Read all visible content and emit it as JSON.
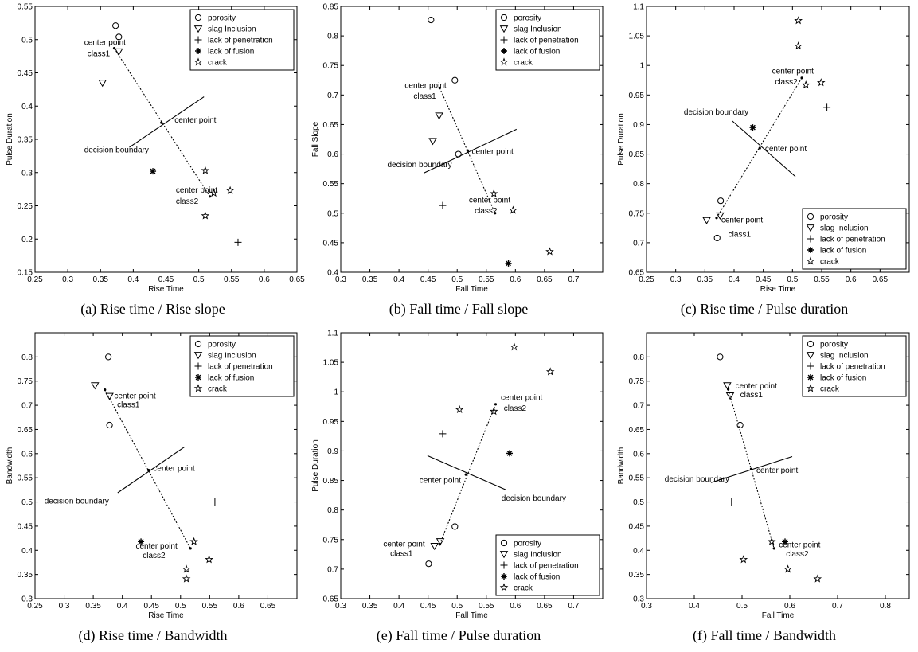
{
  "legend_labels": [
    "porosity",
    "slag Inclusion",
    "lack of penetration",
    "lack of fusion",
    "crack"
  ],
  "marker_shapes": [
    "circle",
    "triangle-down",
    "plus",
    "asterisk",
    "pentagram"
  ],
  "chart_data": [
    {
      "type": "scatter",
      "caption": "(a) Rise time / Rise slope",
      "xlabel": "Rise Time",
      "ylabel": "Pulse Duration",
      "xlim": [
        0.25,
        0.65
      ],
      "ylim": [
        0.15,
        0.55
      ],
      "xticks": [
        0.25,
        0.3,
        0.35,
        0.4,
        0.45,
        0.5,
        0.55,
        0.6,
        0.65
      ],
      "yticks": [
        0.15,
        0.2,
        0.25,
        0.3,
        0.35,
        0.4,
        0.45,
        0.5,
        0.55
      ],
      "legend": "top-right",
      "series": [
        {
          "name": "porosity",
          "points": [
            [
              0.373,
              0.521
            ],
            [
              0.378,
              0.504
            ]
          ]
        },
        {
          "name": "slag Inclusion",
          "points": [
            [
              0.378,
              0.482
            ],
            [
              0.353,
              0.435
            ]
          ]
        },
        {
          "name": "lack of penetration",
          "points": [
            [
              0.56,
              0.195
            ]
          ]
        },
        {
          "name": "lack of fusion",
          "points": [
            [
              0.43,
              0.302
            ]
          ]
        },
        {
          "name": "crack",
          "points": [
            [
              0.51,
              0.303
            ],
            [
              0.51,
              0.235
            ],
            [
              0.523,
              0.269
            ],
            [
              0.548,
              0.273
            ]
          ]
        }
      ],
      "center_class1": [
        0.371,
        0.487
      ],
      "center_class2": [
        0.517,
        0.264
      ],
      "center_point": [
        0.443,
        0.375
      ],
      "boundary": [
        [
          0.394,
          0.338
        ],
        [
          0.508,
          0.414
        ]
      ],
      "annotations": [
        {
          "text": "center point",
          "x": 0.325,
          "y": 0.492
        },
        {
          "text": "class1",
          "x": 0.33,
          "y": 0.475
        },
        {
          "text": "center point",
          "x": 0.463,
          "y": 0.375
        },
        {
          "text": "decision boundary",
          "x": 0.325,
          "y": 0.33
        },
        {
          "text": "center point",
          "x": 0.465,
          "y": 0.27
        },
        {
          "text": "class2",
          "x": 0.465,
          "y": 0.253
        }
      ]
    },
    {
      "type": "scatter",
      "caption": "(b) Fall time / Fall slope",
      "xlabel": "Fall Time",
      "ylabel": "Fall Slope",
      "xlim": [
        0.3,
        0.75
      ],
      "ylim": [
        0.4,
        0.85
      ],
      "xticks": [
        0.3,
        0.35,
        0.4,
        0.45,
        0.5,
        0.55,
        0.6,
        0.65,
        0.7
      ],
      "yticks": [
        0.4,
        0.45,
        0.5,
        0.55,
        0.6,
        0.65,
        0.7,
        0.75,
        0.8,
        0.85
      ],
      "legend": "top-right",
      "series": [
        {
          "name": "porosity",
          "points": [
            [
              0.455,
              0.827
            ],
            [
              0.496,
              0.725
            ],
            [
              0.502,
              0.6
            ]
          ]
        },
        {
          "name": "slag Inclusion",
          "points": [
            [
              0.469,
              0.665
            ],
            [
              0.458,
              0.622
            ]
          ]
        },
        {
          "name": "lack of penetration",
          "points": [
            [
              0.475,
              0.513
            ]
          ]
        },
        {
          "name": "lack of fusion",
          "points": [
            [
              0.588,
              0.415
            ]
          ]
        },
        {
          "name": "crack",
          "points": [
            [
              0.563,
              0.533
            ],
            [
              0.596,
              0.505
            ],
            [
              0.659,
              0.435
            ]
          ]
        }
      ],
      "center_class1": [
        0.47,
        0.712
      ],
      "center_class2": [
        0.565,
        0.5
      ],
      "center_point": [
        0.518,
        0.606
      ],
      "boundary": [
        [
          0.443,
          0.568
        ],
        [
          0.602,
          0.642
        ]
      ],
      "annotations": [
        {
          "text": "center point",
          "x": 0.41,
          "y": 0.712
        },
        {
          "text": "class1",
          "x": 0.425,
          "y": 0.694
        },
        {
          "text": "center point",
          "x": 0.525,
          "y": 0.6
        },
        {
          "text": "decision boundary",
          "x": 0.38,
          "y": 0.578
        },
        {
          "text": "center point",
          "x": 0.52,
          "y": 0.518
        },
        {
          "text": "class2",
          "x": 0.53,
          "y": 0.5
        }
      ]
    },
    {
      "type": "scatter",
      "caption": "(c) Rise time / Pulse duration",
      "xlabel": "Rise Time",
      "ylabel": "Pulse Duration",
      "xlim": [
        0.25,
        0.7
      ],
      "ylim": [
        0.65,
        1.1
      ],
      "xticks": [
        0.25,
        0.3,
        0.35,
        0.4,
        0.45,
        0.5,
        0.55,
        0.6,
        0.65
      ],
      "yticks": [
        0.65,
        0.7,
        0.75,
        0.8,
        0.85,
        0.9,
        0.95,
        1,
        1.05,
        1.1
      ],
      "legend": "bottom-right",
      "series": [
        {
          "name": "porosity",
          "points": [
            [
              0.377,
              0.771
            ],
            [
              0.371,
              0.708
            ]
          ]
        },
        {
          "name": "slag Inclusion",
          "points": [
            [
              0.376,
              0.746
            ],
            [
              0.353,
              0.738
            ]
          ]
        },
        {
          "name": "lack of penetration",
          "points": [
            [
              0.559,
              0.929
            ]
          ]
        },
        {
          "name": "lack of fusion",
          "points": [
            [
              0.432,
              0.895
            ]
          ]
        },
        {
          "name": "crack",
          "points": [
            [
              0.51,
              1.076
            ],
            [
              0.51,
              1.033
            ],
            [
              0.523,
              0.967
            ],
            [
              0.549,
              0.971
            ]
          ]
        }
      ],
      "center_class1": [
        0.37,
        0.742
      ],
      "center_class2": [
        0.516,
        0.979
      ],
      "center_point": [
        0.444,
        0.86
      ],
      "boundary": [
        [
          0.397,
          0.906
        ],
        [
          0.505,
          0.812
        ]
      ],
      "annotations": [
        {
          "text": "center point",
          "x": 0.465,
          "y": 0.986
        },
        {
          "text": "class2",
          "x": 0.47,
          "y": 0.968
        },
        {
          "text": "decision boundary",
          "x": 0.314,
          "y": 0.917
        },
        {
          "text": "center point",
          "x": 0.453,
          "y": 0.855
        },
        {
          "text": "center point",
          "x": 0.378,
          "y": 0.734
        },
        {
          "text": "class1",
          "x": 0.39,
          "y": 0.71
        }
      ]
    },
    {
      "type": "scatter",
      "caption": "(d) Rise time / Bandwidth",
      "xlabel": "Rise Time",
      "ylabel": "Bandwidth",
      "xlim": [
        0.25,
        0.7
      ],
      "ylim": [
        0.3,
        0.85
      ],
      "xticks": [
        0.25,
        0.3,
        0.35,
        0.4,
        0.45,
        0.5,
        0.55,
        0.6,
        0.65
      ],
      "yticks": [
        0.3,
        0.35,
        0.4,
        0.45,
        0.5,
        0.55,
        0.6,
        0.65,
        0.7,
        0.75,
        0.8
      ],
      "legend": "top-right",
      "series": [
        {
          "name": "porosity",
          "points": [
            [
              0.376,
              0.8
            ],
            [
              0.378,
              0.659
            ]
          ]
        },
        {
          "name": "slag Inclusion",
          "points": [
            [
              0.353,
              0.741
            ],
            [
              0.378,
              0.719
            ]
          ]
        },
        {
          "name": "lack of penetration",
          "points": [
            [
              0.559,
              0.5
            ]
          ]
        },
        {
          "name": "lack of fusion",
          "points": [
            [
              0.432,
              0.418
            ]
          ]
        },
        {
          "name": "crack",
          "points": [
            [
              0.523,
              0.418
            ],
            [
              0.549,
              0.381
            ],
            [
              0.51,
              0.361
            ],
            [
              0.51,
              0.341
            ]
          ]
        }
      ],
      "center_class1": [
        0.37,
        0.732
      ],
      "center_class2": [
        0.517,
        0.404
      ],
      "center_point": [
        0.445,
        0.566
      ],
      "boundary": [
        [
          0.392,
          0.519
        ],
        [
          0.507,
          0.614
        ]
      ],
      "annotations": [
        {
          "text": "center point",
          "x": 0.386,
          "y": 0.714
        },
        {
          "text": "class1",
          "x": 0.391,
          "y": 0.696
        },
        {
          "text": "center point",
          "x": 0.453,
          "y": 0.564
        },
        {
          "text": "decision boundary",
          "x": 0.266,
          "y": 0.497
        },
        {
          "text": "center point",
          "x": 0.423,
          "y": 0.404
        },
        {
          "text": "class2",
          "x": 0.435,
          "y": 0.384
        }
      ]
    },
    {
      "type": "scatter",
      "caption": "(e) Fall time / Pulse duration",
      "xlabel": "Fall Time",
      "ylabel": "Pulse Duration",
      "xlim": [
        0.3,
        0.75
      ],
      "ylim": [
        0.65,
        1.1
      ],
      "xticks": [
        0.3,
        0.35,
        0.4,
        0.45,
        0.5,
        0.55,
        0.6,
        0.65,
        0.7
      ],
      "yticks": [
        0.65,
        0.7,
        0.75,
        0.8,
        0.85,
        0.9,
        0.95,
        1,
        1.05,
        1.1
      ],
      "legend": "bottom-right",
      "series": [
        {
          "name": "porosity",
          "points": [
            [
              0.496,
              0.772
            ],
            [
              0.451,
              0.709
            ]
          ]
        },
        {
          "name": "slag Inclusion",
          "points": [
            [
              0.471,
              0.747
            ],
            [
              0.461,
              0.739
            ]
          ]
        },
        {
          "name": "lack of penetration",
          "points": [
            [
              0.475,
              0.929
            ]
          ]
        },
        {
          "name": "lack of fusion",
          "points": [
            [
              0.59,
              0.896
            ]
          ]
        },
        {
          "name": "crack",
          "points": [
            [
              0.598,
              1.076
            ],
            [
              0.66,
              1.034
            ],
            [
              0.504,
              0.97
            ],
            [
              0.563,
              0.967
            ]
          ]
        }
      ],
      "center_class1": [
        0.47,
        0.742
      ],
      "center_class2": [
        0.566,
        0.979
      ],
      "center_point": [
        0.515,
        0.86
      ],
      "boundary": [
        [
          0.449,
          0.892
        ],
        [
          0.584,
          0.834
        ]
      ],
      "annotations": [
        {
          "text": "center point",
          "x": 0.575,
          "y": 0.986
        },
        {
          "text": "class2",
          "x": 0.58,
          "y": 0.968
        },
        {
          "text": "center point",
          "x": 0.435,
          "y": 0.846
        },
        {
          "text": "decision boundary",
          "x": 0.576,
          "y": 0.816
        },
        {
          "text": "center point",
          "x": 0.373,
          "y": 0.738
        },
        {
          "text": "class1",
          "x": 0.385,
          "y": 0.722
        }
      ]
    },
    {
      "type": "scatter",
      "caption": "(f) Fall time / Bandwidth",
      "xlabel": "Fall Time",
      "ylabel": "Bandwidth",
      "xlim": [
        0.3,
        0.85
      ],
      "ylim": [
        0.3,
        0.85
      ],
      "xticks": [
        0.3,
        0.4,
        0.5,
        0.6,
        0.7,
        0.8
      ],
      "yticks": [
        0.3,
        0.35,
        0.4,
        0.45,
        0.5,
        0.55,
        0.6,
        0.65,
        0.7,
        0.75,
        0.8
      ],
      "legend": "top-right",
      "series": [
        {
          "name": "porosity",
          "points": [
            [
              0.454,
              0.8
            ],
            [
              0.496,
              0.659
            ]
          ]
        },
        {
          "name": "slag Inclusion",
          "points": [
            [
              0.469,
              0.741
            ],
            [
              0.475,
              0.72
            ]
          ]
        },
        {
          "name": "lack of penetration",
          "points": [
            [
              0.478,
              0.5
            ]
          ]
        },
        {
          "name": "lack of fusion",
          "points": [
            [
              0.59,
              0.418
            ]
          ]
        },
        {
          "name": "crack",
          "points": [
            [
              0.562,
              0.418
            ],
            [
              0.503,
              0.381
            ],
            [
              0.596,
              0.361
            ],
            [
              0.658,
              0.341
            ]
          ]
        }
      ],
      "center_class1": [
        0.471,
        0.733
      ],
      "center_class2": [
        0.567,
        0.404
      ],
      "center_point": [
        0.519,
        0.568
      ],
      "boundary": [
        [
          0.435,
          0.54
        ],
        [
          0.605,
          0.594
        ]
      ],
      "annotations": [
        {
          "text": "center point",
          "x": 0.486,
          "y": 0.735
        },
        {
          "text": "class1",
          "x": 0.496,
          "y": 0.717
        },
        {
          "text": "center point",
          "x": 0.53,
          "y": 0.56
        },
        {
          "text": "decision boundary",
          "x": 0.338,
          "y": 0.542
        },
        {
          "text": "center point",
          "x": 0.577,
          "y": 0.406
        },
        {
          "text": "class2",
          "x": 0.592,
          "y": 0.387
        }
      ]
    }
  ]
}
